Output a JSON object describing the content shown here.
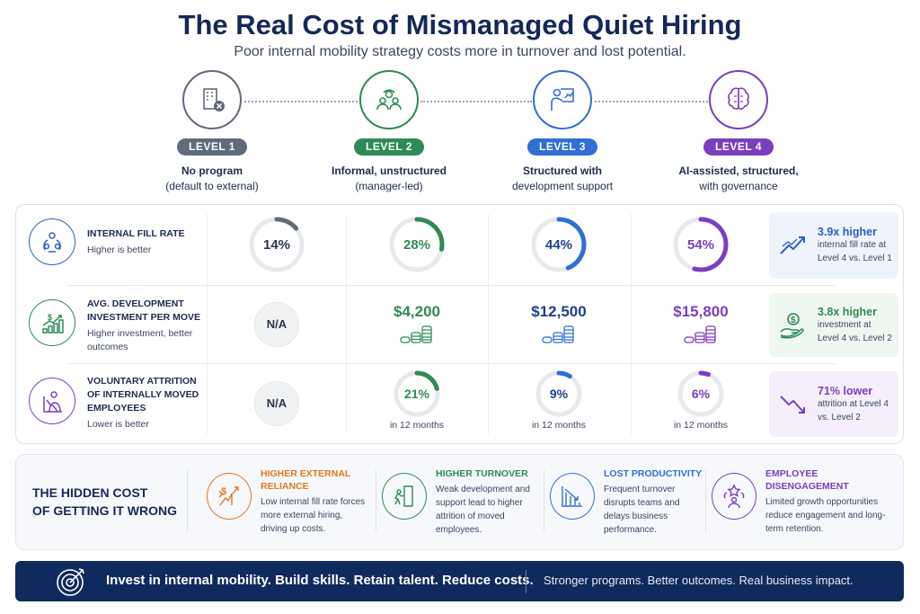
{
  "title": "The Real Cost of Mismanaged Quiet Hiring",
  "subtitle": "Poor internal mobility strategy costs more in turnover and lost potential.",
  "colors": {
    "level1": "#5f6b7a",
    "level2": "#2e8b57",
    "level3": "#2f6fd6",
    "level4": "#7a3fc0",
    "navy": "#0f2a5c"
  },
  "levels": [
    {
      "badge": "LEVEL 1",
      "line1": "No program",
      "line2": "(default to external)",
      "icon": "building-x-icon"
    },
    {
      "badge": "LEVEL 2",
      "line1": "Informal, unstructured",
      "line2": "(manager-led)",
      "icon": "people-group-icon"
    },
    {
      "badge": "LEVEL 3",
      "line1": "Structured with",
      "line2": "development support",
      "icon": "presenter-growth-icon"
    },
    {
      "badge": "LEVEL 4",
      "line1": "AI-assisted, structured,",
      "line2": "with governance",
      "icon": "brain-circuit-icon"
    }
  ],
  "metrics": [
    {
      "title": "INTERNAL FILL RATE",
      "note": "Higher is better",
      "icon": "people-cycle-icon",
      "values": [
        {
          "text": "14%",
          "pct": 14
        },
        {
          "text": "28%",
          "pct": 28
        },
        {
          "text": "44%",
          "pct": 44
        },
        {
          "text": "54%",
          "pct": 54
        }
      ],
      "callout": {
        "headline": "3.9x higher",
        "text": "internal fill rate at Level 4 vs. Level 1",
        "icon": "trend-up-icon"
      }
    },
    {
      "title": "AVG. DEVELOPMENT INVESTMENT PER MOVE",
      "note": "Higher investment, better outcomes",
      "icon": "dollar-growth-chart-icon",
      "values": [
        {
          "text": "N/A"
        },
        {
          "text": "$4,200"
        },
        {
          "text": "$12,500"
        },
        {
          "text": "$15,800"
        }
      ],
      "callout": {
        "headline": "3.8x higher",
        "text": "investment at Level 4 vs. Level 2",
        "icon": "hand-dollar-icon"
      }
    },
    {
      "title": "VOLUNTARY ATTRITION OF INTERNALLY MOVED EMPLOYEES",
      "note": "Lower is better",
      "icon": "person-declining-chart-icon",
      "values": [
        {
          "text": "N/A"
        },
        {
          "text": "21%",
          "pct": 21,
          "sub": "in 12 months"
        },
        {
          "text": "9%",
          "pct": 9,
          "sub": "in 12 months"
        },
        {
          "text": "6%",
          "pct": 6,
          "sub": "in 12 months"
        }
      ],
      "callout": {
        "headline": "71% lower",
        "text": "attrition at Level 4 vs. Level 2",
        "icon": "trend-down-icon"
      }
    }
  ],
  "hidden_cost": {
    "title_line1": "THE HIDDEN COST",
    "title_line2": "OF GETTING IT WRONG",
    "items": [
      {
        "title": "HIGHER EXTERNAL RELIANCE",
        "text": "Low internal fill rate forces more external hiring, driving up costs.",
        "color": "#e07a1f",
        "icon": "dollar-arrows-icon"
      },
      {
        "title": "HIGHER TURNOVER",
        "text": "Weak development and support lead to higher attrition of moved employees.",
        "color": "#2e8b57",
        "icon": "exit-door-icon"
      },
      {
        "title": "LOST PRODUCTIVITY",
        "text": "Frequent turnover disrupts teams and delays business performance.",
        "color": "#2f6fd6",
        "icon": "declining-bars-icon"
      },
      {
        "title": "EMPLOYEE DISENGAGEMENT",
        "text": "Limited growth opportunities reduce engagement and long-term retention.",
        "color": "#7a3fc0",
        "icon": "star-people-icon"
      }
    ]
  },
  "footer": {
    "main": "Invest in internal mobility. Build skills. Retain talent. Reduce costs.",
    "secondary": "Stronger programs. Better outcomes. Real business impact.",
    "icon": "target-icon"
  }
}
